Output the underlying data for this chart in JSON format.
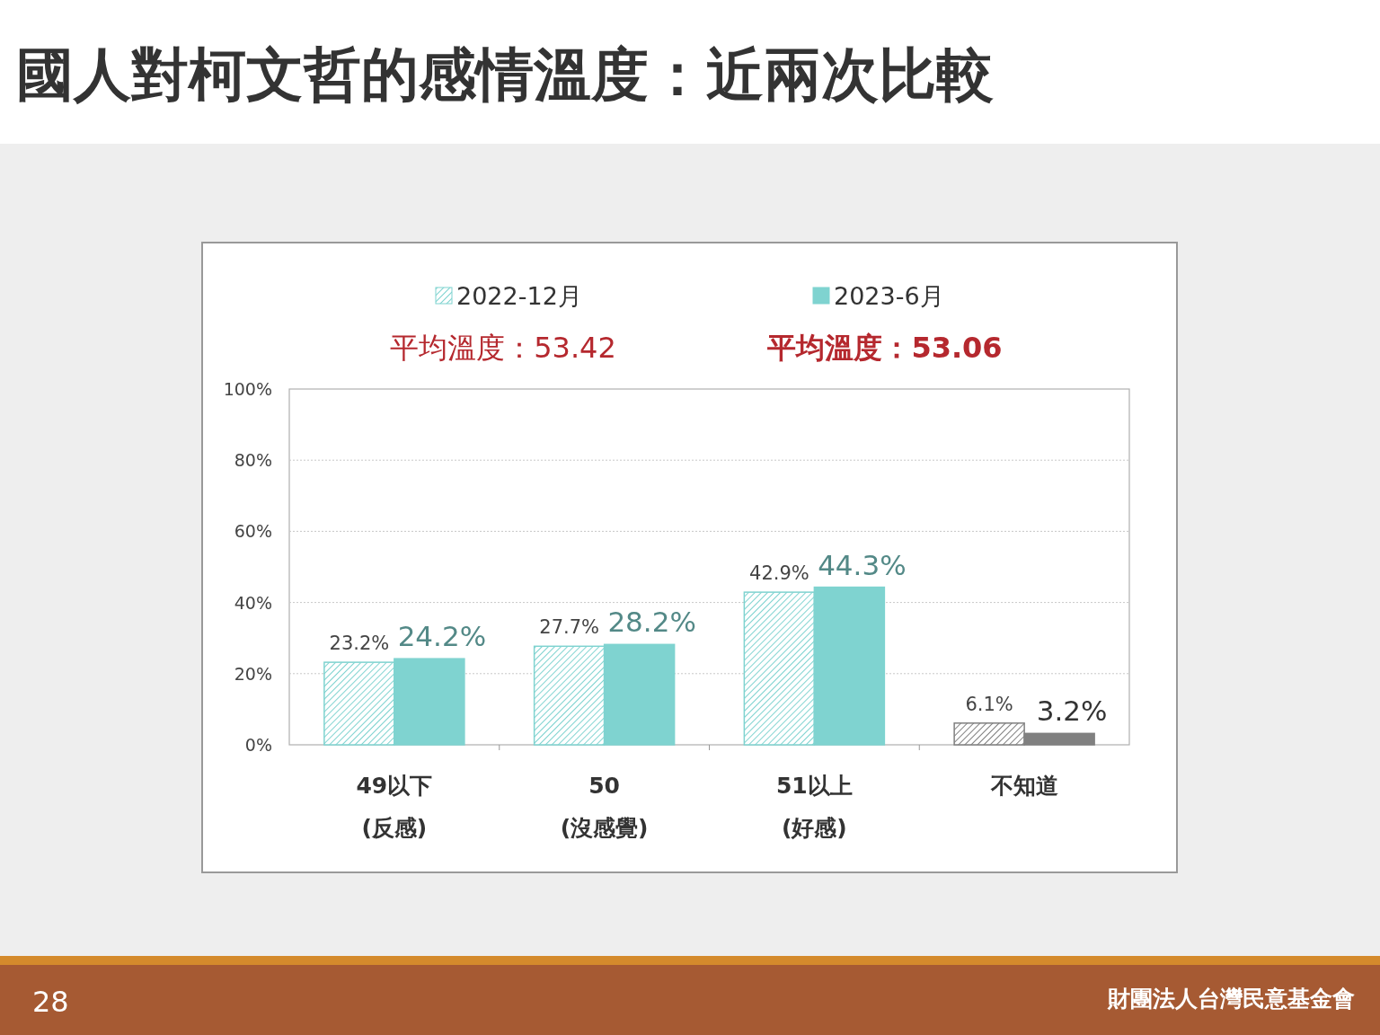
{
  "chart_data": {
    "type": "bar",
    "title": "國人對柯文哲的感情溫度：近兩次比較",
    "categories": [
      "49以下\n(反感)",
      "50\n(沒感覺)",
      "51以上\n(好感)",
      "不知道"
    ],
    "series": [
      {
        "name": "2022-12月",
        "color": "#7fd3d0",
        "colors": [
          "#7fd3d0",
          "#7fd3d0",
          "#7fd3d0",
          "#808080"
        ],
        "values": [
          23.2,
          27.7,
          42.9,
          6.1
        ],
        "value_labels": [
          "23.2%",
          "27.7%",
          "42.9%",
          "6.1%"
        ]
      },
      {
        "name": "2023-6月",
        "color": "#7fd3d0",
        "colors": [
          "#7fd3d0",
          "#7fd3d0",
          "#7fd3d0",
          "#808080"
        ],
        "values": [
          24.2,
          28.2,
          44.3,
          3.2
        ],
        "value_labels": [
          "24.2%",
          "28.2%",
          "44.3%",
          "3.2%"
        ]
      }
    ],
    "ylim": [
      0,
      100
    ],
    "yticks": [
      {
        "value": 0,
        "label": "0%"
      },
      {
        "value": 20,
        "label": "20%"
      },
      {
        "value": 40,
        "label": "40%"
      },
      {
        "value": 60,
        "label": "60%"
      },
      {
        "value": 80,
        "label": "80%"
      },
      {
        "value": 100,
        "label": "100%"
      }
    ],
    "grid": "y",
    "legend": "top",
    "annotations": [
      "平均溫度：53.42",
      "平均溫度：53.06",
      "28",
      "財團法人台灣民意基金會"
    ]
  }
}
